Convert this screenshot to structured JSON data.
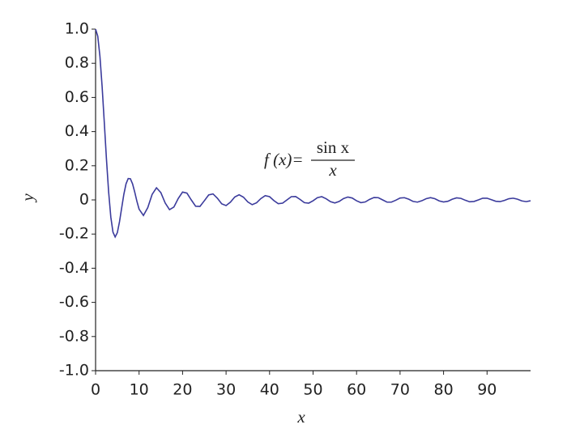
{
  "chart_data": {
    "type": "line",
    "xlabel": "x",
    "ylabel": "y",
    "annotation": {
      "lhs": "f (x)=",
      "numerator": "sin x",
      "denominator": "x"
    },
    "xlim": [
      0,
      100
    ],
    "ylim": [
      -1,
      1
    ],
    "xticks": [
      0,
      10,
      20,
      30,
      40,
      50,
      60,
      70,
      80,
      90
    ],
    "yticks": [
      {
        "value": 1,
        "label": "1.0"
      },
      0.8,
      0.6,
      0.4,
      0.2,
      0,
      -0.2,
      -0.4,
      -0.6,
      -0.8,
      {
        "value": -1,
        "label": "-1.0"
      }
    ],
    "grid": false,
    "x": [
      0,
      0.5,
      1,
      1.5,
      2,
      2.5,
      3,
      3.5,
      4,
      4.5,
      5,
      5.5,
      6,
      6.5,
      7,
      7.5,
      8,
      8.5,
      9,
      9.5,
      10,
      11,
      12,
      13,
      14,
      15,
      16,
      17,
      18,
      19,
      20,
      21,
      22,
      23,
      24,
      25,
      26,
      27,
      28,
      29,
      30,
      31,
      32,
      33,
      34,
      35,
      36,
      37,
      38,
      39,
      40,
      41,
      42,
      43,
      44,
      45,
      46,
      47,
      48,
      49,
      50,
      51,
      52,
      53,
      54,
      55,
      56,
      57,
      58,
      59,
      60,
      61,
      62,
      63,
      64,
      65,
      66,
      67,
      68,
      69,
      70,
      71,
      72,
      73,
      74,
      75,
      76,
      77,
      78,
      79,
      80,
      81,
      82,
      83,
      84,
      85,
      86,
      87,
      88,
      89,
      90,
      91,
      92,
      93,
      94,
      95,
      96,
      97,
      98,
      99,
      100
    ],
    "series": [
      {
        "color": "#3b3b9c",
        "values": [
          1,
          0.959,
          0.841,
          0.665,
          0.455,
          0.239,
          0.047,
          -0.1,
          -0.189,
          -0.217,
          -0.192,
          -0.128,
          -0.047,
          0.033,
          0.094,
          0.125,
          0.124,
          0.094,
          0.046,
          -0.008,
          -0.054,
          -0.091,
          -0.045,
          0.032,
          0.071,
          0.043,
          -0.018,
          -0.057,
          -0.042,
          0.008,
          0.046,
          0.04,
          0,
          -0.037,
          -0.038,
          -0.005,
          0.029,
          0.035,
          0.01,
          -0.023,
          -0.033,
          -0.013,
          0.017,
          0.03,
          0.016,
          -0.012,
          -0.028,
          -0.017,
          0.008,
          0.025,
          0.019,
          -0.004,
          -0.022,
          -0.019,
          0,
          0.019,
          0.02,
          0.003,
          -0.016,
          -0.019,
          -0.005,
          0.013,
          0.019,
          0.007,
          -0.01,
          -0.018,
          -0.009,
          0.008,
          0.017,
          0.011,
          -0.005,
          -0.016,
          -0.012,
          0.003,
          0.014,
          0.013,
          0,
          -0.013,
          -0.013,
          -0.002,
          0.011,
          0.013,
          0.004,
          -0.009,
          -0.013,
          -0.005,
          0.007,
          0.013,
          0.007,
          -0.006,
          -0.012,
          -0.008,
          0.004,
          0.012,
          0.009,
          -0.002,
          -0.011,
          -0.009,
          0,
          0.01,
          0.01,
          0.001,
          -0.008,
          -0.01,
          -0.003,
          0.007,
          0.01,
          0.004,
          -0.006,
          -0.01,
          -0.005
        ]
      }
    ]
  }
}
